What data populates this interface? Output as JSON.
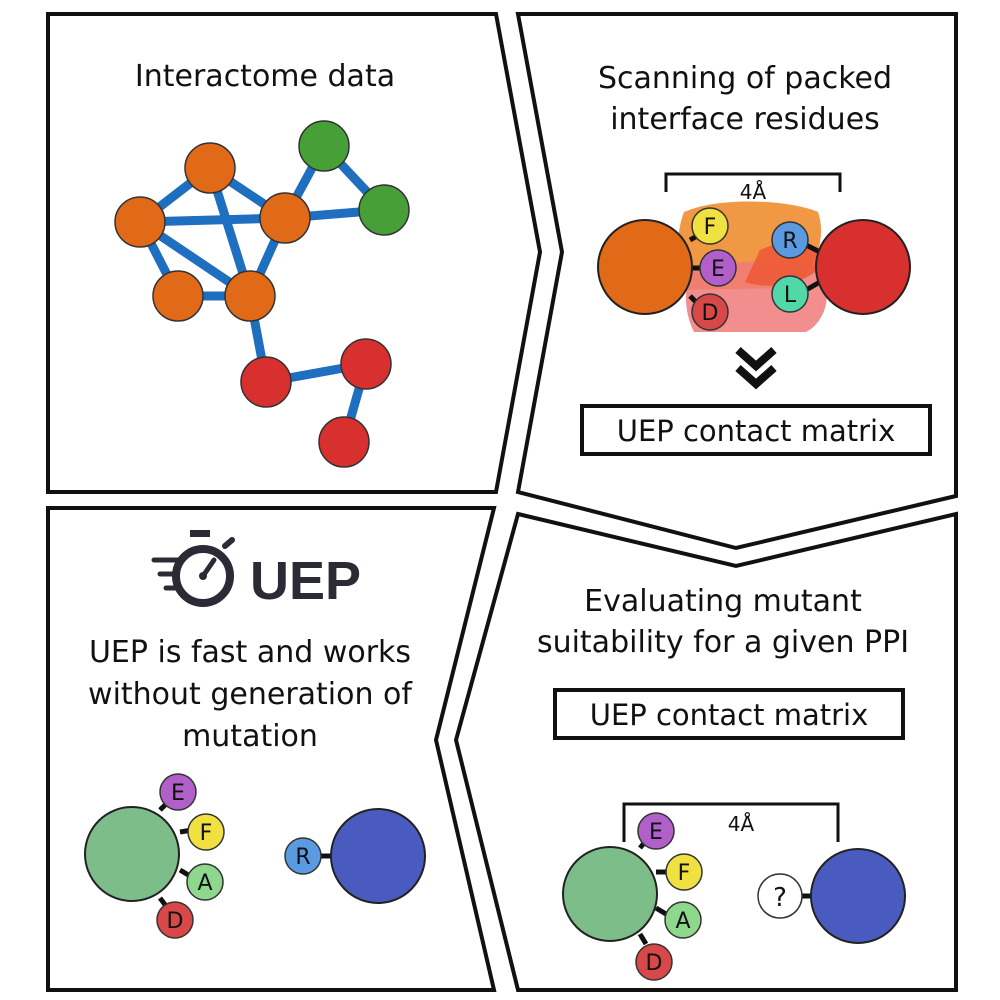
{
  "panels": {
    "top_left": {
      "title": "Interactome data"
    },
    "top_right": {
      "title_line1": "Scanning of packed",
      "title_line2": "interface residues",
      "distance_label": "4Å",
      "residues": {
        "f": "F",
        "e": "E",
        "d": "D",
        "r": "R",
        "l": "L"
      },
      "matrix_label": "UEP contact matrix"
    },
    "bottom_left": {
      "logo_text": "UEP",
      "text_line1": "UEP is fast and works",
      "text_line2": "without generation of",
      "text_line3": "mutation",
      "residues": {
        "e": "E",
        "f": "F",
        "a": "A",
        "d": "D",
        "r": "R"
      }
    },
    "bottom_right": {
      "title_line1": "Evaluating mutant",
      "title_line2": "suitability for a given PPI",
      "matrix_label": "UEP contact matrix",
      "distance_label": "4Å",
      "residues": {
        "e": "E",
        "f": "F",
        "a": "A",
        "d": "D",
        "unknown": "?"
      }
    }
  },
  "colors": {
    "orange": "#e06a18",
    "green_node": "#46a037",
    "red": "#d8302e",
    "edge_blue": "#1f6fc0",
    "pale_green": "#7dbd8a",
    "blue": "#4a5bbf",
    "res_yellow": "#f0e040",
    "res_purple": "#b060c8",
    "res_red": "#d84848",
    "res_blue": "#5a9ae0",
    "res_teal": "#50d8a8",
    "res_lightgreen": "#8ed88e"
  }
}
